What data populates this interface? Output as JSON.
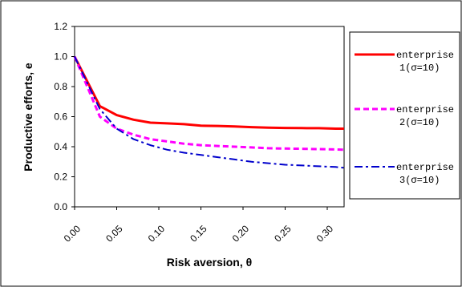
{
  "chart_data": {
    "type": "line",
    "xlabel": "Risk aversion, θ",
    "ylabel": "Productive efforts, e",
    "xlim": [
      0,
      0.32
    ],
    "ylim": [
      0,
      1.2
    ],
    "x_ticks": [
      0,
      0.05,
      0.1,
      0.15,
      0.2,
      0.25,
      0.3
    ],
    "x_tick_labels": [
      "0.00",
      "0.05",
      "0.10",
      "0.15",
      "0.20",
      "0.25",
      "0.30"
    ],
    "y_ticks": [
      0,
      0.2,
      0.4,
      0.6,
      0.8,
      1.0,
      1.2
    ],
    "y_tick_labels": [
      "0.0",
      "0.2",
      "0.4",
      "0.6",
      "0.8",
      "1.0",
      "1.2"
    ],
    "grid": false,
    "legend_position": "right",
    "x": [
      0,
      0.03,
      0.05,
      0.07,
      0.09,
      0.11,
      0.13,
      0.15,
      0.17,
      0.19,
      0.21,
      0.23,
      0.25,
      0.27,
      0.29,
      0.31,
      0.32
    ],
    "series": [
      {
        "legend_line1": "enterprise",
        "legend_line2": "1(σ=10)",
        "color": "#ff0000",
        "dash": "solid",
        "values": [
          1.0,
          0.67,
          0.61,
          0.58,
          0.56,
          0.555,
          0.55,
          0.54,
          0.538,
          0.535,
          0.53,
          0.527,
          0.525,
          0.524,
          0.523,
          0.52,
          0.52
        ]
      },
      {
        "legend_line1": "enterprise",
        "legend_line2": "2(σ=10)",
        "color": "#ff00ff",
        "dash": "dash",
        "values": [
          1.0,
          0.6,
          0.52,
          0.48,
          0.45,
          0.435,
          0.42,
          0.41,
          0.405,
          0.4,
          0.395,
          0.39,
          0.388,
          0.386,
          0.384,
          0.382,
          0.38
        ]
      },
      {
        "legend_line1": "enterprise",
        "legend_line2": "3(σ=10)",
        "color": "#0000cc",
        "dash": "dashdot",
        "values": [
          1.0,
          0.65,
          0.52,
          0.45,
          0.41,
          0.38,
          0.36,
          0.345,
          0.33,
          0.315,
          0.3,
          0.29,
          0.28,
          0.275,
          0.27,
          0.265,
          0.26
        ]
      }
    ]
  }
}
